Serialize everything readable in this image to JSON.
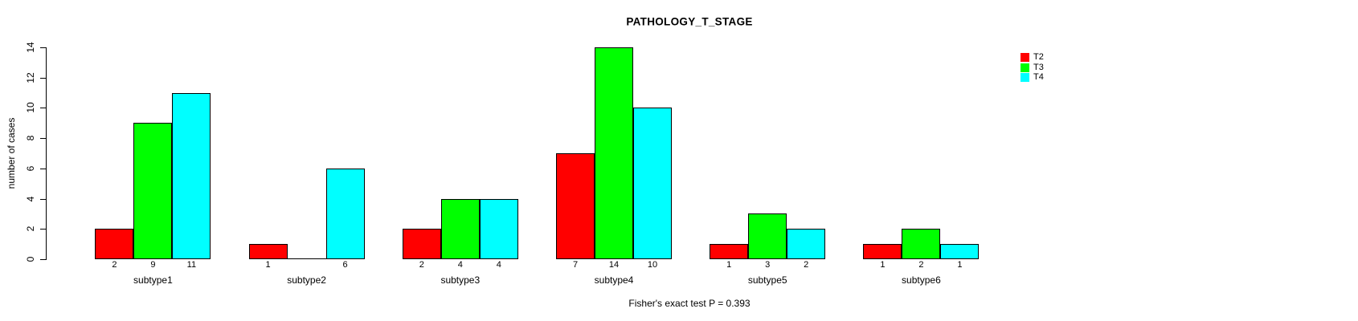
{
  "title": "PATHOLOGY_T_STAGE",
  "footer": "Fisher's exact test P = 0.393",
  "chart_data": {
    "type": "bar",
    "title": "PATHOLOGY_T_STAGE",
    "xlabel": "",
    "ylabel": "number of cases",
    "ylim": [
      0,
      14
    ],
    "yticks": [
      0,
      2,
      4,
      6,
      8,
      10,
      12,
      14
    ],
    "grid": false,
    "categories": [
      "subtype1",
      "subtype2",
      "subtype3",
      "subtype4",
      "subtype5",
      "subtype6"
    ],
    "series": [
      {
        "name": "T2",
        "color": "#ff0000",
        "values": [
          2,
          1,
          2,
          7,
          1,
          1
        ]
      },
      {
        "name": "T3",
        "color": "#00ff00",
        "values": [
          9,
          0,
          4,
          14,
          3,
          2
        ]
      },
      {
        "name": "T4",
        "color": "#00ffff",
        "values": [
          11,
          6,
          4,
          10,
          2,
          1
        ]
      }
    ],
    "value_labels": [
      [
        "2",
        "9",
        "11"
      ],
      [
        "1",
        "",
        "6"
      ],
      [
        "2",
        "4",
        "4"
      ],
      [
        "7",
        "14",
        "10"
      ],
      [
        "1",
        "3",
        "2"
      ],
      [
        "1",
        "2",
        "1"
      ]
    ],
    "legend": {
      "position": "top-right",
      "entries": [
        {
          "label": "T2",
          "color": "#ff0000"
        },
        {
          "label": "T3",
          "color": "#00ff00"
        },
        {
          "label": "T4",
          "color": "#00ffff"
        }
      ]
    },
    "annotation": "Fisher's exact test P = 0.393"
  }
}
